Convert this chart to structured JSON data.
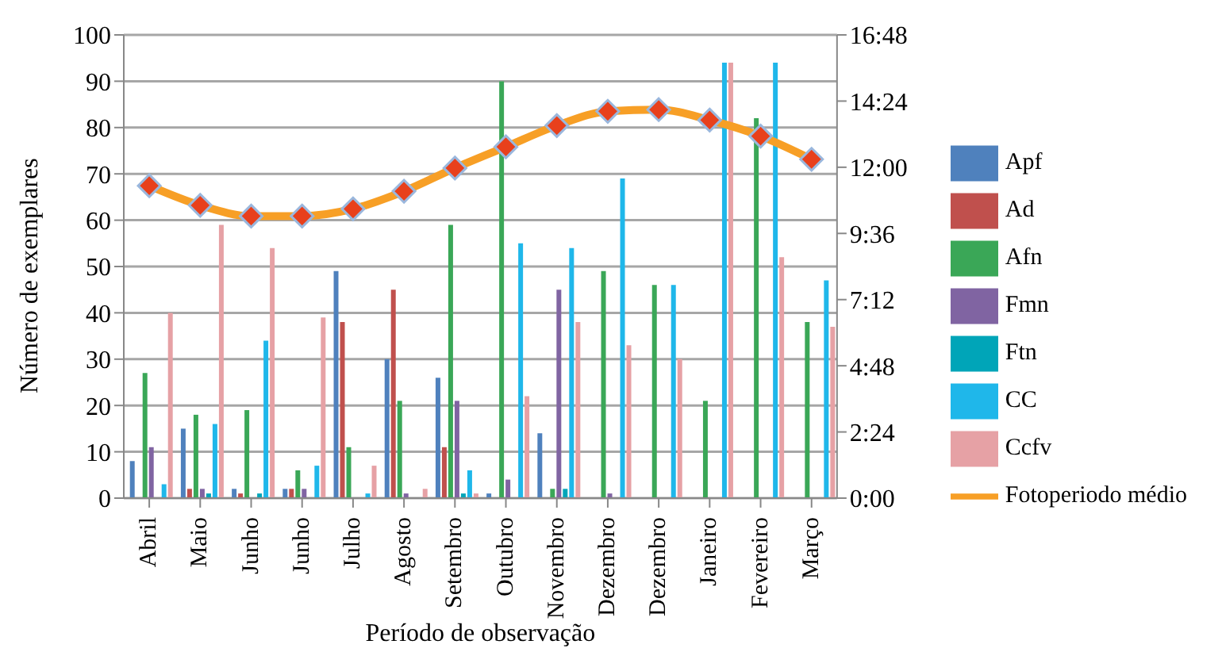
{
  "chart_data": {
    "type": "bar",
    "xlabel": "Período de observação",
    "ylabel": "Número de exemplares",
    "categories": [
      "Abril",
      "Maio",
      "Junho",
      "Junho",
      "Julho",
      "Agosto",
      "Setembro",
      "Outubro",
      "Novembro",
      "Dezembro",
      "Dezembro",
      "Janeiro",
      "Fevereiro",
      "Março"
    ],
    "series": [
      {
        "name": "Apf",
        "color": "#4f81bd",
        "values": [
          8,
          15,
          2,
          2,
          49,
          30,
          26,
          1,
          14,
          0,
          0,
          0,
          0,
          0
        ]
      },
      {
        "name": "Ad",
        "color": "#c0504d",
        "values": [
          0,
          2,
          1,
          2,
          38,
          45,
          11,
          0,
          0,
          0,
          0,
          0,
          0,
          0
        ]
      },
      {
        "name": "Afn",
        "color": "#3aa757",
        "values": [
          27,
          18,
          19,
          6,
          11,
          21,
          59,
          90,
          2,
          49,
          46,
          21,
          82,
          38
        ]
      },
      {
        "name": "Fmn",
        "color": "#8064a2",
        "values": [
          11,
          2,
          0,
          2,
          0,
          1,
          21,
          4,
          45,
          1,
          0,
          0,
          0,
          0
        ]
      },
      {
        "name": "Ftn",
        "color": "#00a5b8",
        "values": [
          0,
          1,
          1,
          0,
          0,
          0,
          1,
          0,
          2,
          0,
          0,
          0,
          0,
          0
        ]
      },
      {
        "name": "CC",
        "color": "#1fb7ea",
        "values": [
          3,
          16,
          34,
          7,
          1,
          0,
          6,
          55,
          54,
          69,
          46,
          94,
          94,
          47
        ]
      },
      {
        "name": "Ccfv",
        "color": "#e6a1a5",
        "values": [
          40,
          59,
          54,
          39,
          7,
          2,
          1,
          22,
          38,
          33,
          30,
          94,
          52,
          37
        ]
      },
      {
        "name": "Fotoperiodo médio",
        "type": "line",
        "axis": "y2",
        "color": "#f79f26",
        "marker": "diamond",
        "values": [
          11.33,
          10.62,
          10.23,
          10.23,
          10.49,
          11.13,
          11.97,
          12.74,
          13.51,
          14.03,
          14.09,
          13.71,
          13.13,
          12.29
        ]
      }
    ],
    "ylim": [
      0,
      100
    ],
    "yticks": [
      0,
      10,
      20,
      30,
      40,
      50,
      60,
      70,
      80,
      90,
      100
    ],
    "y2lim": [
      0,
      16.8
    ],
    "y2ticks": [
      {
        "value": 0,
        "label": "0:00"
      },
      {
        "value": 2.4,
        "label": "2:24"
      },
      {
        "value": 4.8,
        "label": "4:48"
      },
      {
        "value": 7.2,
        "label": "7:12"
      },
      {
        "value": 9.6,
        "label": "9:36"
      },
      {
        "value": 12,
        "label": "12:00"
      },
      {
        "value": 14.4,
        "label": "14:24"
      },
      {
        "value": 16.8,
        "label": "16:48"
      }
    ],
    "grid": "y",
    "legend": "right"
  }
}
